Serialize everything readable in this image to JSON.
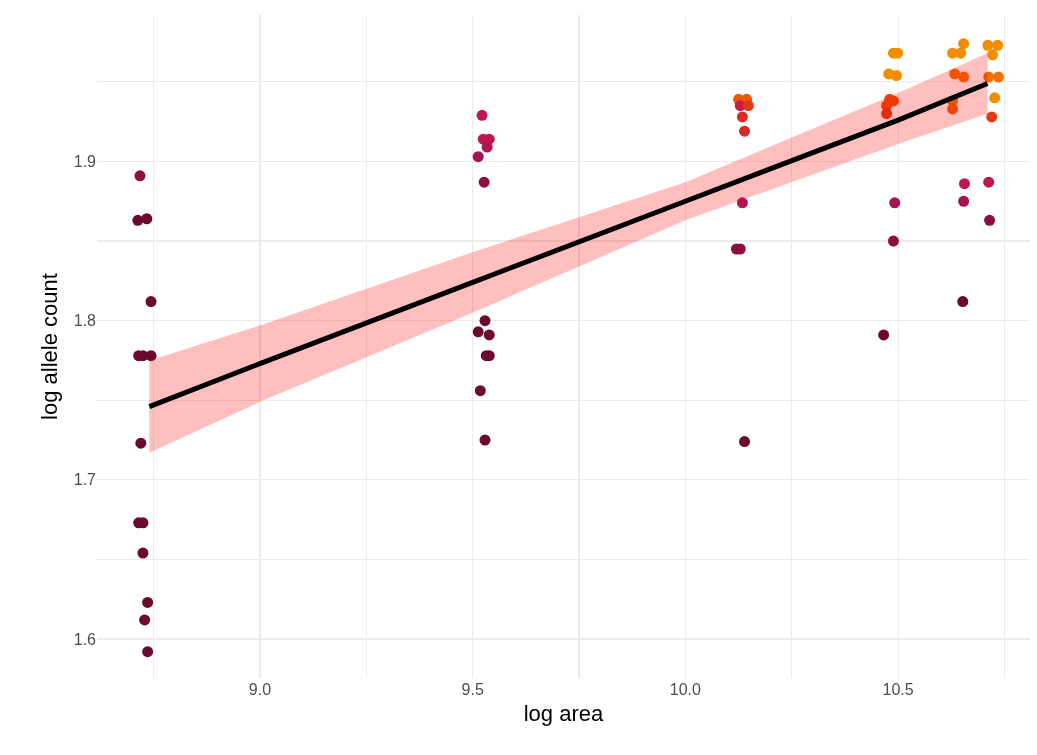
{
  "chart_data": {
    "type": "scatter",
    "xlabel": "log area",
    "ylabel": "log allele count",
    "xlim": [
      8.617,
      10.81
    ],
    "ylim": [
      1.5755,
      1.992
    ],
    "xticks": [
      {
        "value": 8.75,
        "label": null
      },
      {
        "value": 9,
        "label": "9.0"
      },
      {
        "value": 9.25,
        "label": null
      },
      {
        "value": 9.5,
        "label": "9.5"
      },
      {
        "value": 9.75,
        "label": null
      },
      {
        "value": 10,
        "label": "10.0"
      },
      {
        "value": 10.25,
        "label": null
      },
      {
        "value": 10.5,
        "label": "10.5"
      },
      {
        "value": 10.75,
        "label": null
      }
    ],
    "yticks": [
      1.6,
      {
        "value": 1.65,
        "label": null
      },
      1.7,
      {
        "value": 1.75,
        "label": null
      },
      1.8,
      {
        "value": 1.85,
        "label": null
      },
      1.9,
      {
        "value": 1.95,
        "label": null
      }
    ],
    "grid": true,
    "series": [
      {
        "marker": "circle",
        "x": [
          8.718,
          8.713,
          8.734,
          8.744,
          8.715,
          8.725,
          8.744,
          8.72,
          8.715,
          8.725,
          8.725,
          8.736,
          8.729,
          8.736,
          9.522,
          9.525,
          9.539,
          9.534,
          9.513,
          9.527,
          9.529,
          9.513,
          9.539,
          9.532,
          9.539,
          9.518,
          9.529,
          10.125,
          10.144,
          10.129,
          10.148,
          10.134,
          10.139,
          10.134,
          10.12,
          10.129,
          10.139,
          10.489,
          10.499,
          10.478,
          10.496,
          10.48,
          10.489,
          10.473,
          10.473,
          10.492,
          10.489,
          10.466,
          10.654,
          10.628,
          10.647,
          10.633,
          10.654,
          10.628,
          10.628,
          10.656,
          10.654,
          10.652,
          10.711,
          10.734,
          10.722,
          10.713,
          10.736,
          10.727,
          10.72,
          10.713,
          10.715
        ],
        "values": [
          1.891,
          1.863,
          1.864,
          1.812,
          1.778,
          1.778,
          1.778,
          1.723,
          1.673,
          1.673,
          1.654,
          1.623,
          1.612,
          1.592,
          1.929,
          1.914,
          1.914,
          1.909,
          1.903,
          1.887,
          1.8,
          1.793,
          1.791,
          1.778,
          1.778,
          1.756,
          1.725,
          1.939,
          1.939,
          1.935,
          1.935,
          1.928,
          1.919,
          1.874,
          1.845,
          1.845,
          1.724,
          1.968,
          1.968,
          1.955,
          1.954,
          1.939,
          1.938,
          1.935,
          1.93,
          1.874,
          1.85,
          1.791,
          1.974,
          1.968,
          1.968,
          1.955,
          1.953,
          1.938,
          1.933,
          1.886,
          1.875,
          1.812,
          1.973,
          1.973,
          1.967,
          1.953,
          1.953,
          1.94,
          1.928,
          1.887,
          1.863
        ],
        "colors": [
          "#8e0f3f",
          "#6b0a2e",
          "#6b0a2e",
          "#6b0a2e",
          "#6b0a2e",
          "#6b0a2e",
          "#6b0a2e",
          "#6b0a2e",
          "#6b0a2e",
          "#6b0a2e",
          "#6b0a2e",
          "#6b0a2e",
          "#6b0a2e",
          "#6b0a2e",
          "#c0184e",
          "#c0184e",
          "#c0184e",
          "#b01550",
          "#a51350",
          "#8e0f3f",
          "#6b0a2e",
          "#6b0a2e",
          "#6b0a2e",
          "#6b0a2e",
          "#6b0a2e",
          "#6b0a2e",
          "#6b0a2e",
          "#e85a0c",
          "#e85a0c",
          "#c81d4a",
          "#e03b10",
          "#dc2d23",
          "#d42a2a",
          "#b01550",
          "#8e0f3f",
          "#8e0f3f",
          "#6b0a2e",
          "#f28c00",
          "#f28c00",
          "#f28c00",
          "#f28c00",
          "#e84a08",
          "#e84a08",
          "#e84a08",
          "#e03b10",
          "#a51350",
          "#8e0f3f",
          "#6b0a2e",
          "#f28c00",
          "#f28c00",
          "#f28c00",
          "#f07000",
          "#f07000",
          "#f07000",
          "#e85a0c",
          "#c0184e",
          "#a51350",
          "#6b0a2e",
          "#f28c00",
          "#f28c00",
          "#f28c00",
          "#f07000",
          "#f07000",
          "#f28c00",
          "#e03b10",
          "#c0184e",
          "#8e0f3f"
        ]
      },
      {
        "type": "line",
        "marker": "none",
        "color": "#000000",
        "x": [
          8.74,
          9.0,
          9.5,
          10.0,
          10.5,
          10.71
        ],
        "values": [
          1.746,
          1.773,
          1.824,
          1.875,
          1.926,
          1.949
        ],
        "lower": [
          1.717,
          1.749,
          1.805,
          1.863,
          1.911,
          1.93
        ],
        "upper": [
          1.775,
          1.797,
          1.843,
          1.887,
          1.943,
          1.968
        ]
      }
    ]
  }
}
